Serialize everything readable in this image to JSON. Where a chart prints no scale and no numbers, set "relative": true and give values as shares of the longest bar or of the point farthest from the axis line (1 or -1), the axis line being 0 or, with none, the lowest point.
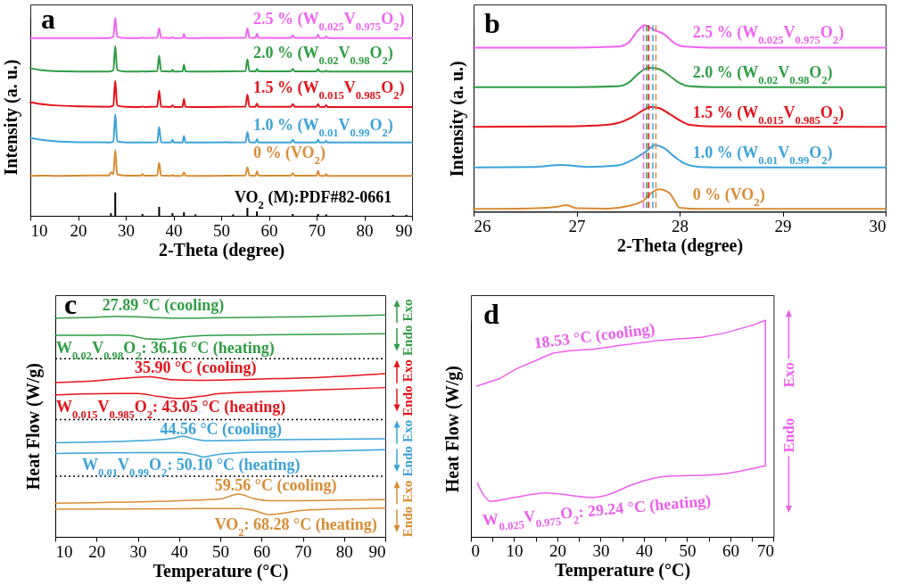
{
  "chart_data": [
    {
      "type": "line",
      "title": "a",
      "xlabel": "2-Theta (degree)",
      "ylabel": "Intensity (a. u.)",
      "relative": true,
      "xlim": [
        10,
        90
      ],
      "xticks": [
        10,
        20,
        30,
        40,
        50,
        60,
        70,
        80,
        90
      ],
      "x": [
        10,
        12,
        15,
        20,
        26.5,
        27.0,
        27.4,
        27.8,
        28.2,
        30,
        33.2,
        33.5,
        33.8,
        36.6,
        37.0,
        37.4,
        39.5,
        39.8,
        40.1,
        41.9,
        42.2,
        42.5,
        45,
        55.1,
        55.5,
        55.9,
        57.2,
        57.5,
        57.8,
        64.6,
        65.0,
        65.4,
        70.0,
        70.3,
        70.6,
        71.7,
        72.0,
        72.3,
        80,
        90
      ],
      "series": [
        {
          "name": "2.5 % (W$_{0.025}$V$_{0.975}$O$_{2}$)",
          "color": "#f263f2",
          "values": [
            0.898,
            0.898,
            0.898,
            0.898,
            0.898,
            0.9,
            0.905,
            1.0,
            0.905,
            0.898,
            0.898,
            0.9,
            0.898,
            0.9,
            0.947,
            0.9,
            0.898,
            0.902,
            0.898,
            0.899,
            0.918,
            0.899,
            0.898,
            0.9,
            0.947,
            0.9,
            0.899,
            0.92,
            0.899,
            0.899,
            0.911,
            0.899,
            0.899,
            0.916,
            0.899,
            0.898,
            0.907,
            0.898,
            0.898,
            0.898
          ]
        },
        {
          "name": "2.0 % (W$_{0.02}$V$_{0.98}$O$_{2}$)",
          "color": "#2f9e44",
          "values": [
            0.745,
            0.737,
            0.731,
            0.729,
            0.729,
            0.731,
            0.736,
            0.858,
            0.736,
            0.729,
            0.729,
            0.731,
            0.729,
            0.731,
            0.808,
            0.731,
            0.729,
            0.738,
            0.729,
            0.73,
            0.763,
            0.73,
            0.729,
            0.731,
            0.79,
            0.731,
            0.73,
            0.742,
            0.73,
            0.73,
            0.742,
            0.73,
            0.73,
            0.742,
            0.73,
            0.729,
            0.733,
            0.729,
            0.729,
            0.729
          ]
        },
        {
          "name": "1.5 % (W$_{0.015}$V$_{0.985}$O$_{2}$)",
          "color": "#e5131b",
          "values": [
            0.573,
            0.565,
            0.558,
            0.553,
            0.551,
            0.553,
            0.557,
            0.682,
            0.557,
            0.551,
            0.55,
            0.552,
            0.55,
            0.552,
            0.632,
            0.552,
            0.55,
            0.559,
            0.55,
            0.551,
            0.59,
            0.551,
            0.55,
            0.552,
            0.613,
            0.552,
            0.551,
            0.568,
            0.551,
            0.551,
            0.564,
            0.551,
            0.551,
            0.564,
            0.551,
            0.55,
            0.559,
            0.55,
            0.55,
            0.55
          ]
        },
        {
          "name": "1.0 % (W$_{0.01}$V$_{0.99}$O$_{2}$)",
          "color": "#3ba3d9",
          "values": [
            0.393,
            0.385,
            0.377,
            0.372,
            0.371,
            0.372,
            0.376,
            0.513,
            0.376,
            0.371,
            0.37,
            0.372,
            0.37,
            0.372,
            0.448,
            0.372,
            0.37,
            0.384,
            0.37,
            0.371,
            0.403,
            0.371,
            0.37,
            0.372,
            0.423,
            0.372,
            0.371,
            0.388,
            0.371,
            0.371,
            0.384,
            0.371,
            0.371,
            0.384,
            0.371,
            0.37,
            0.379,
            0.37,
            0.37,
            0.37
          ]
        },
        {
          "name": "0 % (VO$_{2}$)",
          "color": "#d98c34",
          "values": [
            0.202,
            0.203,
            0.202,
            0.203,
            0.204,
            0.22,
            0.21,
            0.332,
            0.208,
            0.203,
            0.203,
            0.211,
            0.203,
            0.204,
            0.268,
            0.204,
            0.202,
            0.206,
            0.202,
            0.203,
            0.22,
            0.203,
            0.202,
            0.204,
            0.245,
            0.204,
            0.203,
            0.225,
            0.203,
            0.203,
            0.215,
            0.203,
            0.203,
            0.227,
            0.203,
            0.202,
            0.211,
            0.202,
            0.202,
            0.202
          ]
        },
        {
          "name": "VO$_{2}$ (M):PDF#82-0661",
          "type": "bar",
          "color": "#000000",
          "x": [
            26.9,
            27.8,
            33.5,
            37.0,
            39.8,
            42.2,
            44.6,
            52.5,
            55.5,
            57.5,
            65.0,
            70.3,
            72.0,
            86.0,
            88.8
          ],
          "values": [
            0.013,
            0.118,
            0.009,
            0.045,
            0.013,
            0.018,
            0.007,
            0.007,
            0.04,
            0.022,
            0.009,
            0.009,
            0.007,
            0.005,
            0.005
          ]
        }
      ]
    },
    {
      "type": "line",
      "title": "b",
      "xlabel": "2-Theta (degree)",
      "ylabel": "Intensity (a. u.)",
      "relative": true,
      "xlim": [
        26,
        30
      ],
      "xticks": [
        26,
        27,
        28,
        29,
        30
      ],
      "series": [
        {
          "name": "2.5 % (W$_{0.025}$V$_{0.975}$O$_{2}$)",
          "color": "#f263f2",
          "x": [
            26,
            27,
            27.4,
            27.5,
            27.6,
            27.66,
            27.75,
            27.85,
            27.95,
            28.05,
            28.3,
            30
          ],
          "values": [
            0.88,
            0.88,
            0.885,
            0.905,
            0.975,
            1.0,
            0.975,
            0.952,
            0.904,
            0.885,
            0.88,
            0.88
          ]
        },
        {
          "name": "2.0 % (W$_{0.02}$V$_{0.98}$O$_{2}$)",
          "color": "#2f9e44",
          "x": [
            26,
            27,
            27.4,
            27.5,
            27.6,
            27.7,
            27.8,
            27.9,
            28.0,
            28.1,
            28.3,
            30
          ],
          "values": [
            0.668,
            0.668,
            0.672,
            0.69,
            0.74,
            0.772,
            0.765,
            0.73,
            0.69,
            0.672,
            0.668,
            0.668
          ]
        },
        {
          "name": "1.5 % (W$_{0.015}$V$_{0.985}$O$_{2}$)",
          "color": "#e5131b",
          "x": [
            26,
            26.8,
            27.2,
            27.4,
            27.55,
            27.65,
            27.72,
            27.8,
            27.9,
            28.0,
            28.1,
            28.3,
            30
          ],
          "values": [
            0.455,
            0.457,
            0.462,
            0.475,
            0.51,
            0.545,
            0.561,
            0.555,
            0.525,
            0.49,
            0.465,
            0.457,
            0.455
          ]
        },
        {
          "name": "1.0 % (W$_{0.01}$V$_{0.99}$O$_{2}$)",
          "color": "#3ba3d9",
          "x": [
            26,
            26.6,
            26.85,
            27.1,
            27.4,
            27.55,
            27.68,
            27.76,
            27.85,
            27.95,
            28.05,
            28.2,
            28.5,
            30
          ],
          "values": [
            0.237,
            0.24,
            0.25,
            0.24,
            0.248,
            0.28,
            0.325,
            0.357,
            0.34,
            0.295,
            0.258,
            0.24,
            0.237,
            0.237
          ]
        },
        {
          "name": "0 % (VO$_{2}$)",
          "color": "#d98c34",
          "x": [
            26,
            26.6,
            26.8,
            26.9,
            27.0,
            27.3,
            27.5,
            27.65,
            27.75,
            27.8,
            27.9,
            27.95,
            28.0,
            28.2,
            30
          ],
          "values": [
            0.014,
            0.018,
            0.025,
            0.035,
            0.018,
            0.016,
            0.03,
            0.06,
            0.11,
            0.12,
            0.1,
            0.06,
            0.02,
            0.014,
            0.014
          ]
        }
      ],
      "ref_lines": [
        {
          "axis": "x",
          "value": 27.65,
          "color": "#f263f2",
          "line_style": "dashed"
        },
        {
          "axis": "x",
          "value": 27.68,
          "color": "#2f9e44",
          "line_style": "dashed"
        },
        {
          "axis": "x",
          "value": 27.7,
          "color": "#e5131b",
          "line_style": "dashed"
        },
        {
          "axis": "x",
          "value": 27.74,
          "color": "#3ba3d9",
          "line_style": "dashed"
        },
        {
          "axis": "x",
          "value": 27.77,
          "color": "#d98c34",
          "line_style": "dashed"
        }
      ]
    },
    {
      "type": "line",
      "title": "c",
      "xlabel": "Temperature (°C)",
      "ylabel": "Heat Flow (W/g)",
      "relative": true,
      "xlim": [
        10,
        90
      ],
      "xticks": [
        10,
        20,
        30,
        40,
        50,
        60,
        70,
        80,
        90
      ],
      "series": [
        {
          "name": "27.89 °C (cooling)",
          "color": "#2f9e44",
          "x": [
            10,
            20,
            25,
            30,
            35,
            40,
            50,
            60,
            70,
            80,
            90
          ],
          "values": [
            0.986,
            0.99,
            0.994,
            0.992,
            0.988,
            0.986,
            0.988,
            0.99,
            0.992,
            0.996,
            1.0
          ]
        },
        {
          "name": "W$_{0.02}$V$_{0.98}$O$_{2}$: 36.16 °C (heating)",
          "color": "#2f9e44",
          "x": [
            10,
            20,
            25,
            28,
            32,
            36,
            40,
            45,
            60,
            90
          ],
          "values": [
            0.909,
            0.909,
            0.91,
            0.908,
            0.893,
            0.891,
            0.899,
            0.907,
            0.911,
            0.916
          ]
        },
        {
          "name": "35.90 °C (cooling)",
          "color": "#e5131b",
          "x": [
            10,
            20,
            28,
            33,
            38,
            45,
            60,
            75,
            90
          ],
          "values": [
            0.696,
            0.704,
            0.717,
            0.722,
            0.709,
            0.706,
            0.712,
            0.72,
            0.736
          ]
        },
        {
          "name": "W$_{0.015}$V$_{0.985}$O$_{2}$: 43.05 °C (heating)",
          "color": "#e5131b",
          "x": [
            10,
            25,
            30,
            35,
            40,
            45,
            50,
            70,
            90
          ],
          "values": [
            0.64,
            0.646,
            0.646,
            0.633,
            0.624,
            0.633,
            0.646,
            0.66,
            0.673
          ]
        },
        {
          "name": "44.56 °C (cooling)",
          "color": "#3ba3d9",
          "x": [
            10,
            30,
            38,
            41,
            44,
            47,
            60,
            90
          ],
          "values": [
            0.424,
            0.433,
            0.443,
            0.453,
            0.44,
            0.433,
            0.437,
            0.442
          ]
        },
        {
          "name": "W$_{0.01}$V$_{0.99}$O$_{2}$: 50.10 °C (heating)",
          "color": "#3ba3d9",
          "x": [
            10,
            30,
            40,
            44,
            46,
            48,
            55,
            70,
            90
          ],
          "values": [
            0.376,
            0.38,
            0.38,
            0.369,
            0.36,
            0.367,
            0.38,
            0.384,
            0.393
          ]
        },
        {
          "name": "59.56 °C (cooling)",
          "color": "#d98c34",
          "x": [
            10,
            40,
            50,
            54.5,
            58,
            62,
            90
          ],
          "values": [
            0.152,
            0.163,
            0.171,
            0.193,
            0.173,
            0.163,
            0.168
          ]
        },
        {
          "name": "VO$_{2}$: 68.28 °C (heating)",
          "color": "#d98c34",
          "x": [
            10,
            40,
            55,
            58,
            62,
            66,
            70,
            90
          ],
          "values": [
            0.125,
            0.127,
            0.128,
            0.12,
            0.1,
            0.109,
            0.12,
            0.13
          ]
        }
      ],
      "ref_lines": [
        {
          "axis": "y",
          "value": 0.803,
          "color": "#000000",
          "line_style": "dotted"
        },
        {
          "axis": "y",
          "value": 0.529,
          "color": "#000000",
          "line_style": "dotted"
        },
        {
          "axis": "y",
          "value": 0.273,
          "color": "#000000",
          "line_style": "dotted"
        }
      ],
      "annotations": [
        "Exo",
        "Endo",
        "Exo",
        "Endo",
        "Exo",
        "Endo",
        "Exo",
        "Endo"
      ]
    },
    {
      "type": "line",
      "title": "d",
      "xlabel": "Temperature (°C)",
      "ylabel": "Heat Flow (W/g)",
      "relative": true,
      "xlim": [
        0,
        70
      ],
      "xticks": [
        0,
        {
          "value": 5,
          "label": null
        },
        10,
        {
          "value": 15,
          "label": null
        },
        20,
        {
          "value": 25,
          "label": null
        },
        30,
        {
          "value": 35,
          "label": null
        },
        40,
        {
          "value": 45,
          "label": null
        },
        50,
        {
          "value": 55,
          "label": null
        },
        60,
        {
          "value": 65,
          "label": null
        },
        70
      ],
      "series": [
        {
          "name": "W$_{0.025}$V$_{0.975}$O$_{2}$: 29.24 °C (heating)",
          "color": "#ee5eee",
          "x": [
            1.5,
            3.1,
            4.5,
            10.0,
            17.5,
            23.0,
            27.8,
            31.3,
            36.8,
            42.3,
            46.4,
            54.6,
            60.2,
            65.0,
            68.1
          ],
          "values": [
            0.248,
            0.189,
            0.164,
            0.182,
            0.203,
            0.192,
            0.182,
            0.192,
            0.237,
            0.271,
            0.281,
            0.285,
            0.296,
            0.315,
            0.329
          ]
        },
        {
          "name": "18.53 °C (cooling)",
          "color": "#ee5eee",
          "x": [
            68.1,
            68.1,
            65.0,
            58.8,
            53.3,
            43.7,
            35.4,
            28.5,
            23.0,
            18.9,
            15.5,
            10.7,
            6.5,
            1.4
          ],
          "values": [
            0.329,
            1.0,
            0.977,
            0.942,
            0.922,
            0.908,
            0.887,
            0.867,
            0.86,
            0.849,
            0.819,
            0.778,
            0.73,
            0.696
          ]
        }
      ],
      "annotations": [
        "Exo",
        "Endo"
      ]
    }
  ]
}
